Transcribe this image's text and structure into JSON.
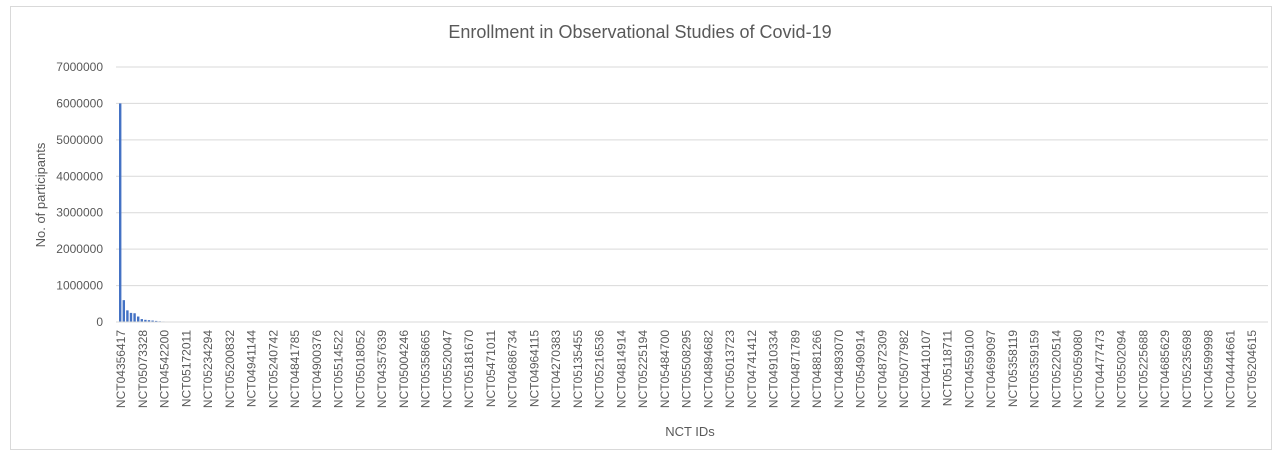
{
  "chart_data": {
    "type": "bar",
    "title": "Enrollment in Observational Studies of Covid-19",
    "xlabel": "NCT IDs",
    "ylabel": "No. of participants",
    "ylim": [
      0,
      7000000
    ],
    "yticks": [
      "0",
      "1000000",
      "2000000",
      "3000000",
      "4000000",
      "5000000",
      "6000000",
      "7000000"
    ],
    "grid": true,
    "legend": "none",
    "bar_color": "#4472c4",
    "categories": [
      "NCT04356417",
      "NCT05073328",
      "NCT04542200",
      "NCT05172011",
      "NCT05234294",
      "NCT05200832",
      "NCT04941144",
      "NCT05240742",
      "NCT04841785",
      "NCT04900376",
      "NCT05514522",
      "NCT05018052",
      "NCT04357639",
      "NCT05004246",
      "NCT05358665",
      "NCT05520047",
      "NCT05181670",
      "NCT05471011",
      "NCT04686734",
      "NCT04964115",
      "NCT04270383",
      "NCT05135455",
      "NCT05216536",
      "NCT04814914",
      "NCT05225194",
      "NCT05484700",
      "NCT05508295",
      "NCT04894682",
      "NCT05013723",
      "NCT04741412",
      "NCT04910334",
      "NCT04871789",
      "NCT04881266",
      "NCT04893070",
      "NCT05490914",
      "NCT04872309",
      "NCT05077982",
      "NCT04410107",
      "NCT05118711",
      "NCT04559100",
      "NCT04699097",
      "NCT05358119",
      "NCT05359159",
      "NCT05220514",
      "NCT05059080",
      "NCT04477473",
      "NCT05502094",
      "NCT05225688",
      "NCT04685629",
      "NCT05235698",
      "NCT04599998",
      "NCT04444661",
      "NCT05204615"
    ],
    "values": [
      6000000,
      600000,
      320000,
      250000,
      240000,
      150000,
      80000,
      60000,
      50000,
      40000,
      30000,
      20000,
      15000,
      12000,
      10000,
      8000,
      6000,
      5000,
      4000,
      3500,
      3000,
      2500,
      2000,
      1800,
      1600,
      1400,
      1200,
      1000,
      900,
      800,
      700,
      600,
      500,
      450,
      400,
      350,
      300,
      280,
      260,
      240,
      220,
      200,
      180,
      160,
      150,
      140,
      130,
      120,
      110,
      100,
      90,
      80,
      70
    ]
  }
}
